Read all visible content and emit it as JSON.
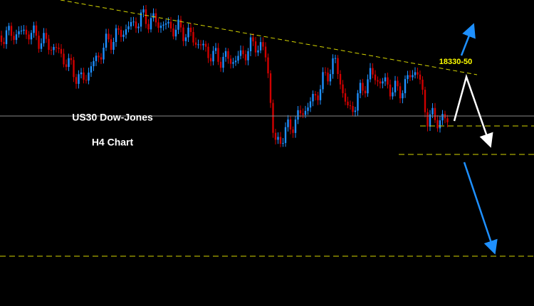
{
  "chart": {
    "title": "US30 Dow-Jones",
    "subtitle": "H4 Chart",
    "annotation": "18330-50"
  }
}
